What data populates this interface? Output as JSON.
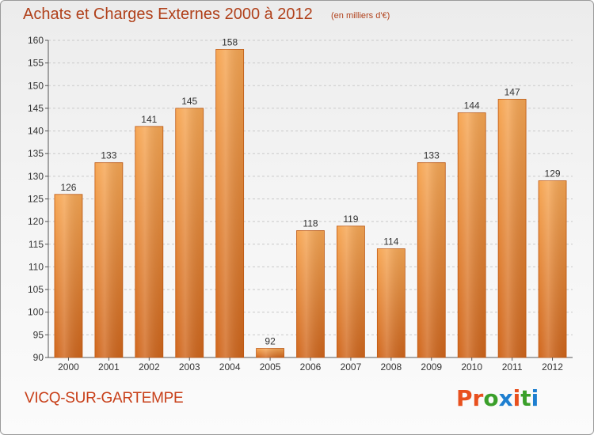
{
  "header": {
    "title": "Achats et Charges Externes 2000 à 2012",
    "subtitle": "(en milliers d'€)"
  },
  "footer": {
    "commune": "VICQ-SUR-GARTEMPE",
    "brand": "Proxiti",
    "brand_colors": [
      "#e8501e",
      "#e8501e",
      "#3a9f2a",
      "#1e7fd0",
      "#e8501e",
      "#3a9f2a",
      "#1e7fd0"
    ]
  },
  "colors": {
    "bar_top": "#f6a653",
    "bar_bottom": "#d0661c",
    "bar_stroke": "#c05a14",
    "title": "#b0401a"
  },
  "chart_data": {
    "type": "bar",
    "title": "Achats et Charges Externes 2000 à 2012",
    "subtitle": "(en milliers d'€)",
    "xlabel": "",
    "ylabel": "",
    "categories": [
      "2000",
      "2001",
      "2002",
      "2003",
      "2004",
      "2005",
      "2006",
      "2007",
      "2008",
      "2009",
      "2010",
      "2011",
      "2012"
    ],
    "values": [
      126,
      133,
      141,
      145,
      158,
      92,
      118,
      119,
      114,
      133,
      144,
      147,
      129
    ],
    "ylim": [
      90,
      160
    ],
    "yticks": [
      "90",
      "95",
      "100",
      "105",
      "110",
      "115",
      "120",
      "125",
      "130",
      "135",
      "140",
      "145",
      "150",
      "155",
      "160"
    ],
    "grid": true,
    "data_labels": true
  }
}
